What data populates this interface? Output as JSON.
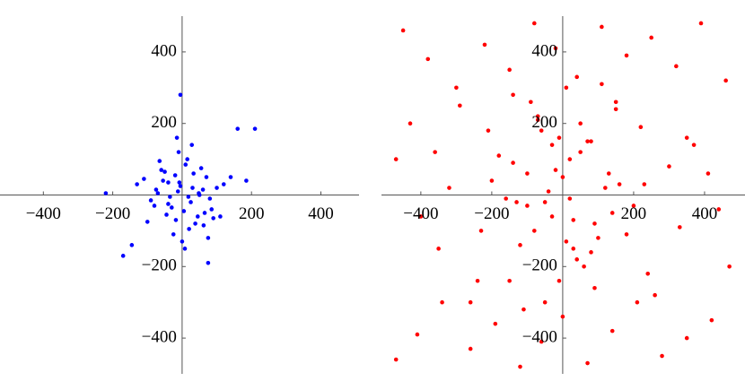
{
  "chart_data": [
    {
      "type": "scatter",
      "color": "#0000ff",
      "xlim": [
        -525,
        510
      ],
      "ylim": [
        -500,
        500
      ],
      "xticks": [
        {
          "value": -400,
          "label": "−400"
        },
        {
          "value": -200,
          "label": "−200"
        },
        200,
        400
      ],
      "yticks": [
        400,
        200,
        {
          "value": -200,
          "label": "−200"
        },
        {
          "value": -400,
          "label": "−400"
        }
      ],
      "x": [
        -12,
        25,
        -40,
        60,
        5,
        -70,
        33,
        -18,
        80,
        -55,
        10,
        -30,
        45,
        -5,
        70,
        -90,
        20,
        -60,
        100,
        -25,
        15,
        -45,
        55,
        -80,
        38,
        -10,
        120,
        -110,
        0,
        65,
        -35,
        28,
        -65,
        90,
        -15,
        48,
        -100,
        8,
        -130,
        140,
        75,
        -145,
        160,
        -220,
        210,
        185,
        110,
        -170,
        75,
        -5,
        50,
        -40,
        30,
        -20,
        85,
        -75,
        18,
        -50,
        62,
        -8
      ],
      "y": [
        10,
        -20,
        35,
        15,
        -45,
        5,
        60,
        -70,
        -10,
        40,
        85,
        -35,
        -60,
        25,
        50,
        -15,
        -95,
        70,
        20,
        -110,
        100,
        -55,
        75,
        -30,
        -80,
        120,
        30,
        45,
        -130,
        -50,
        -5,
        140,
        95,
        -65,
        160,
        5,
        -75,
        -150,
        30,
        50,
        -120,
        -140,
        185,
        5,
        185,
        40,
        -60,
        -170,
        -190,
        280,
        0,
        -25,
        20,
        55,
        -40,
        15,
        -5,
        65,
        -85,
        35
      ]
    },
    {
      "type": "scatter",
      "color": "#ff0000",
      "xlim": [
        -511,
        514
      ],
      "ylim": [
        -500,
        500
      ],
      "xticks": [
        {
          "value": -400,
          "label": "−400"
        },
        {
          "value": -200,
          "label": "−200"
        },
        200,
        400
      ],
      "yticks": [
        400,
        200,
        {
          "value": -200,
          "label": "−200"
        },
        {
          "value": -400,
          "label": "−400"
        }
      ],
      "x": [
        -450,
        -380,
        -300,
        -220,
        -150,
        -80,
        -20,
        40,
        110,
        180,
        250,
        320,
        390,
        460,
        -470,
        -410,
        -340,
        -260,
        -190,
        -120,
        -60,
        0,
        70,
        140,
        210,
        280,
        350,
        420,
        -430,
        -360,
        -290,
        -210,
        -140,
        -70,
        10,
        80,
        150,
        220,
        300,
        370,
        440,
        -100,
        -50,
        20,
        90,
        -160,
        160,
        -30,
        50,
        -120,
        120,
        -80,
        30,
        -200,
        200,
        -10,
        60,
        -140,
        100,
        -60,
        0,
        140,
        -180,
        180,
        -40,
        80,
        -100,
        40,
        -20,
        20,
        -240,
        240,
        -320,
        330,
        -400,
        410,
        -260,
        260,
        -150,
        150,
        -90,
        90,
        -350,
        350,
        -470,
        470,
        -230,
        230,
        -110,
        110,
        -30,
        30,
        -70,
        70,
        -10,
        10,
        -50,
        50,
        -130,
        130
      ],
      "y": [
        460,
        380,
        300,
        420,
        350,
        480,
        410,
        330,
        470,
        390,
        440,
        360,
        480,
        320,
        -460,
        -390,
        -300,
        -430,
        -360,
        -480,
        -410,
        -340,
        -470,
        -380,
        -300,
        -450,
        -400,
        -350,
        200,
        120,
        250,
        180,
        280,
        220,
        300,
        150,
        260,
        190,
        80,
        140,
        -40,
        60,
        -20,
        100,
        -80,
        -10,
        30,
        -60,
        120,
        -140,
        20,
        -100,
        -150,
        40,
        -30,
        160,
        -200,
        90,
        -120,
        180,
        50,
        -50,
        110,
        -110,
        10,
        -160,
        -30,
        -180,
        70,
        -10,
        -240,
        -220,
        20,
        -90,
        -60,
        60,
        -300,
        -280,
        -240,
        240,
        260,
        -260,
        -150,
        160,
        100,
        -200,
        -100,
        30,
        -320,
        310,
        140,
        -70,
        210,
        150,
        -240,
        -130,
        -300,
        200,
        -20,
        60
      ]
    }
  ]
}
